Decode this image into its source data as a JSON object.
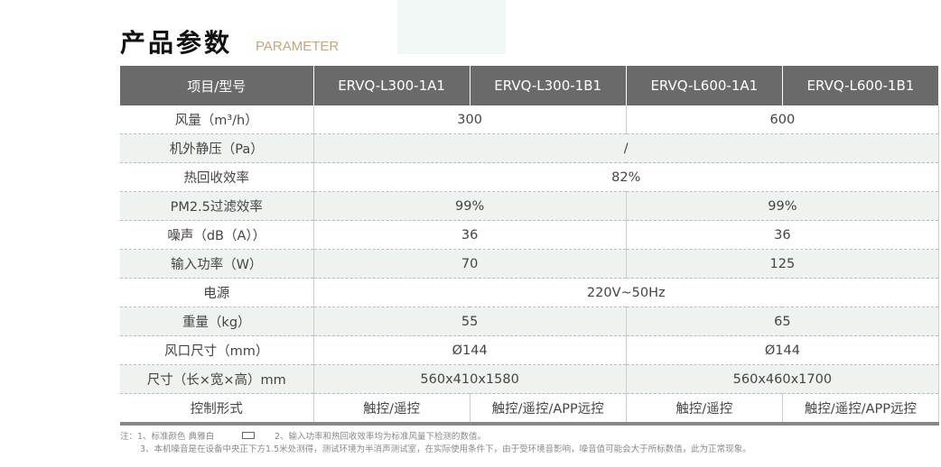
{
  "header": {
    "title": "产品参数",
    "subtitle": "PARAMETER"
  },
  "table": {
    "columns": [
      "项目/型号",
      "ERVQ-L300-1A1",
      "ERVQ-L300-1B1",
      "ERVQ-L600-1A1",
      "ERVQ-L600-1B1"
    ],
    "rows": [
      {
        "label": "风量（m³/h）",
        "cells": [
          "300",
          "600"
        ]
      },
      {
        "label": "机外静压（Pa）",
        "cells": [
          "/"
        ]
      },
      {
        "label": "热回收效率",
        "cells": [
          "82%"
        ]
      },
      {
        "label": "PM2.5过滤效率",
        "cells": [
          "99%",
          "99%"
        ]
      },
      {
        "label": "噪声（dB（A））",
        "cells": [
          "36",
          "36"
        ]
      },
      {
        "label": "输入功率（W）",
        "cells": [
          "70",
          "125"
        ]
      },
      {
        "label": "电源",
        "cells": [
          "220V~50Hz"
        ]
      },
      {
        "label": "重量（kg）",
        "cells": [
          "55",
          "65"
        ]
      },
      {
        "label": "风口尺寸（mm）",
        "cells": [
          "Ø144",
          "Ø144"
        ]
      },
      {
        "label": "尺寸（长×宽×高）mm",
        "cells": [
          "560x410x1580",
          "560x460x1700"
        ]
      },
      {
        "label": "控制形式",
        "cells": [
          "触控/遥控",
          "触控/遥控/APP远控",
          "触控/遥控",
          "触控/遥控/APP远控"
        ]
      }
    ]
  },
  "notes": [
    "注：1、标准颜色  典雅白",
    "2、输入功率和热回收效率均为标准风量下检测的数值。",
    "3、本机噪音是在设备中央正下方1.5米处测得，测试环境为半消声测试室，在实际使用条件下，由于受环境音影响，噪音值可能会大于所标数值，此为正常现象。"
  ]
}
